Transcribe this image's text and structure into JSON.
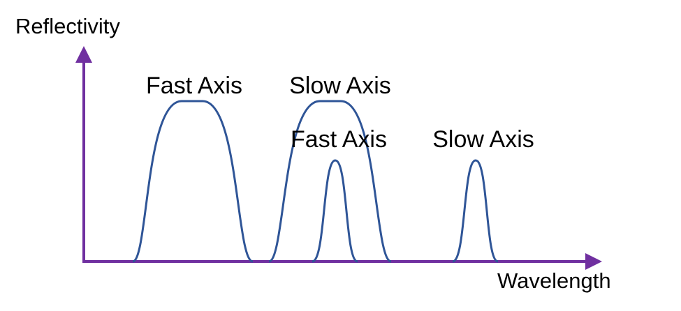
{
  "axes": {
    "y_label": "Reflectivity",
    "x_label": "Wavelength"
  },
  "peaks": [
    {
      "label": "Fast Axis"
    },
    {
      "label": "Slow Axis"
    },
    {
      "label": "Fast Axis"
    },
    {
      "label": "Slow Axis"
    }
  ]
}
